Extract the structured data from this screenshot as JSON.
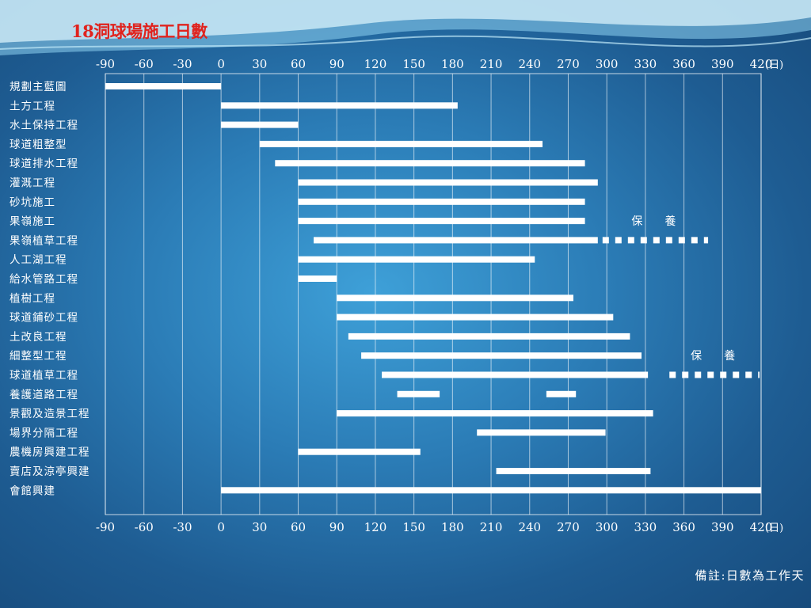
{
  "title": "18洞球場施工日數",
  "footnote": "備註:日數為工作天",
  "colors": {
    "bar": "#ffffff",
    "title": "#e0231e",
    "gridline": "#ffffff",
    "background": "#2b7cb6"
  },
  "chart_data": {
    "type": "gantt",
    "xlim": [
      -90,
      420
    ],
    "x_ticks": [
      -90,
      -60,
      -30,
      0,
      30,
      60,
      90,
      120,
      150,
      180,
      210,
      240,
      270,
      300,
      330,
      360,
      390,
      420
    ],
    "x_unit": "(日)",
    "grid": true,
    "tasks": [
      {
        "name": "規劃主藍圖",
        "bars": [
          [
            -90,
            0
          ]
        ]
      },
      {
        "name": "土方工程",
        "bars": [
          [
            0,
            184
          ]
        ]
      },
      {
        "name": "水土保持工程",
        "bars": [
          [
            0,
            60
          ]
        ]
      },
      {
        "name": "球道粗整型",
        "bars": [
          [
            30,
            250
          ]
        ]
      },
      {
        "name": "球道排水工程",
        "bars": [
          [
            42,
            283
          ]
        ]
      },
      {
        "name": "灌溉工程",
        "bars": [
          [
            60,
            293
          ]
        ]
      },
      {
        "name": "砂坑施工",
        "bars": [
          [
            60,
            283
          ]
        ]
      },
      {
        "name": "果嶺施工",
        "bars": [
          [
            60,
            283
          ]
        ],
        "annotation": "保　　養"
      },
      {
        "name": "果嶺植草工程",
        "bars": [
          [
            72,
            293
          ]
        ],
        "dashed": [
          [
            293,
            380
          ]
        ]
      },
      {
        "name": "人工湖工程",
        "bars": [
          [
            60,
            244
          ]
        ]
      },
      {
        "name": "給水管路工程",
        "bars": [
          [
            60,
            90
          ]
        ]
      },
      {
        "name": "植樹工程",
        "bars": [
          [
            90,
            274
          ]
        ]
      },
      {
        "name": "球道鋪砂工程",
        "bars": [
          [
            90,
            305
          ]
        ]
      },
      {
        "name": "土改良工程",
        "bars": [
          [
            99,
            318
          ]
        ]
      },
      {
        "name": "細整型工程",
        "bars": [
          [
            109,
            327
          ]
        ],
        "annotation": "保　　養"
      },
      {
        "name": "球道植草工程",
        "bars": [
          [
            125,
            332
          ]
        ],
        "dashed": [
          [
            345,
            420
          ]
        ]
      },
      {
        "name": "養護道路工程",
        "bars": [
          [
            137,
            170
          ],
          [
            253,
            276
          ]
        ]
      },
      {
        "name": "景觀及造景工程",
        "bars": [
          [
            90,
            336
          ]
        ]
      },
      {
        "name": "場界分隔工程",
        "bars": [
          [
            199,
            299
          ]
        ]
      },
      {
        "name": "農機房興建工程",
        "bars": [
          [
            60,
            155
          ]
        ]
      },
      {
        "name": "賣店及涼亭興建",
        "bars": [
          [
            214,
            334
          ]
        ]
      },
      {
        "name": "會館興建",
        "bars": [
          [
            0,
            420
          ]
        ]
      }
    ]
  }
}
